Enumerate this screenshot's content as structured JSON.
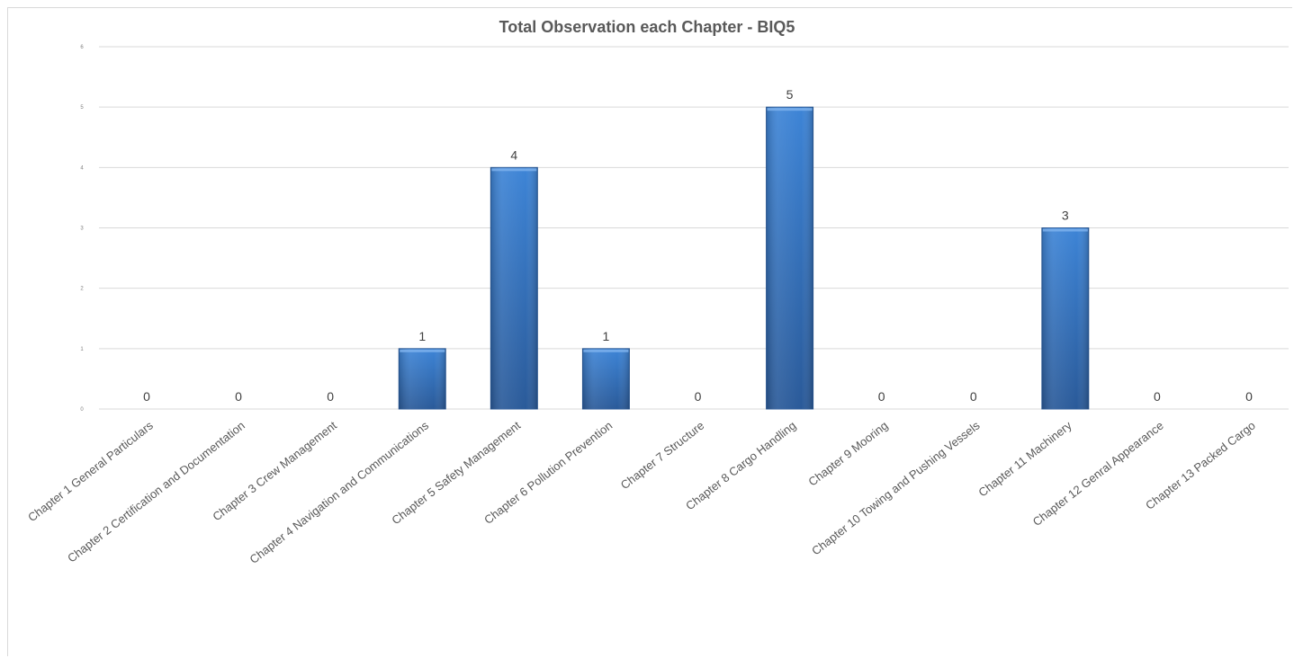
{
  "chart_data": {
    "type": "bar",
    "title": "Total Observation each Chapter - BIQ5",
    "xlabel": "",
    "ylabel": "",
    "ylim": [
      0,
      6
    ],
    "yticks": [
      0,
      1,
      2,
      3,
      4,
      5,
      6
    ],
    "grid": true,
    "legend": "none",
    "bar_color": "#3a7ccc",
    "bar_color_dark": "#2a5a99",
    "categories": [
      "Chapter 1 General Particulars",
      "Chapter 2 Certification and Documentation",
      "Chapter 3 Crew Management",
      "Chapter 4 Navigation and Communications",
      "Chapter 5 Safety Management",
      "Chapter 6 Pollution Prevention",
      "Chapter 7 Structure",
      "Chapter 8 Cargo Handling",
      "Chapter 9 Mooring",
      "Chapter 10 Towing and Pushing Vessels",
      "Chapter 11 Machinery",
      "Chapter 12 Genral Appearance",
      "Chapter 13 Packed Cargo"
    ],
    "values": [
      0,
      0,
      0,
      1,
      4,
      1,
      0,
      5,
      0,
      0,
      3,
      0,
      0
    ]
  }
}
